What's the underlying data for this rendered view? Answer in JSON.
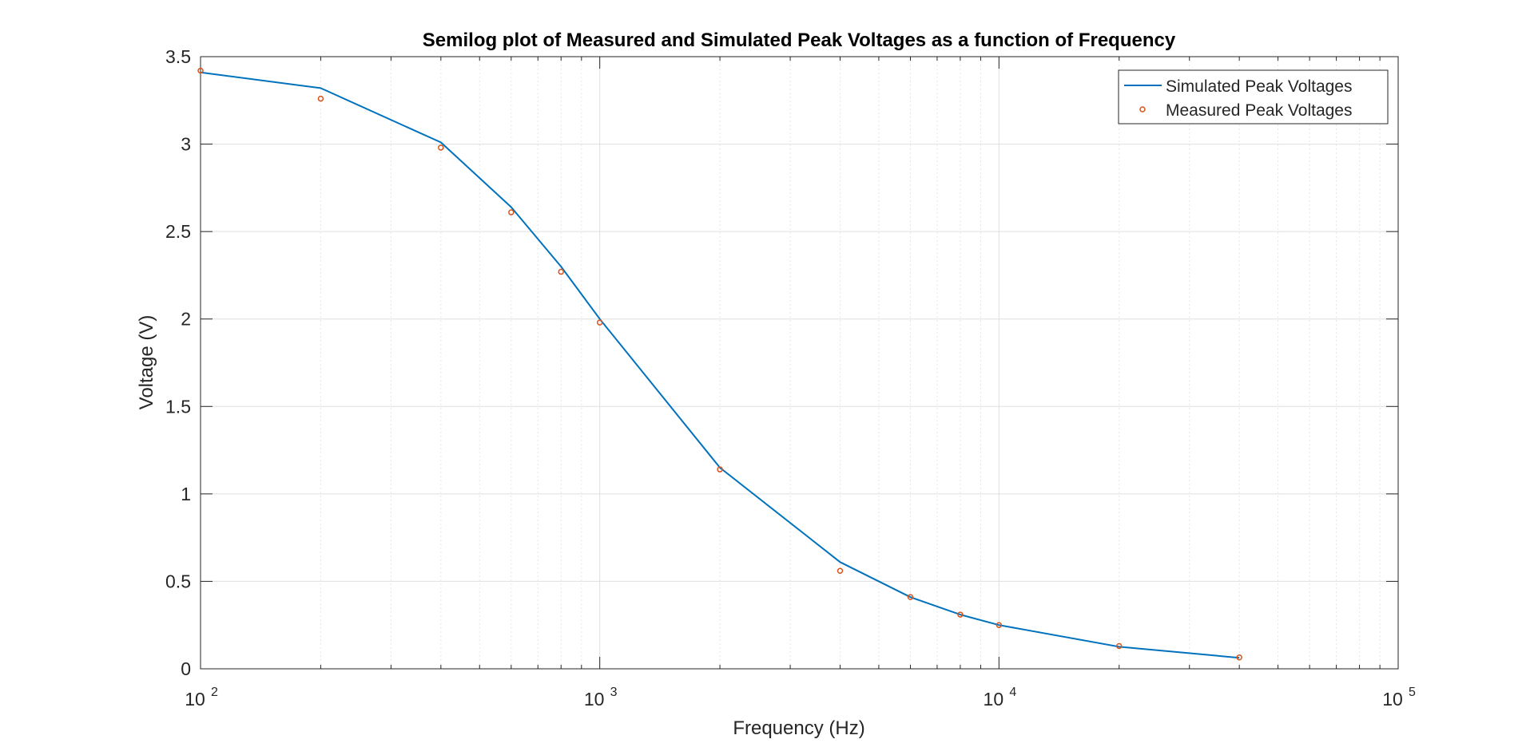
{
  "chart_data": {
    "type": "line",
    "title": "Semilog plot of Measured and Simulated Peak Voltages as a function of Frequency",
    "xlabel": "Frequency (Hz)",
    "ylabel": "Voltage (V)",
    "xscale": "log",
    "xlim": [
      100,
      100000
    ],
    "ylim": [
      0,
      3.5
    ],
    "grid": true,
    "legend": "top-right",
    "x_ticks": [
      {
        "base": "10",
        "exp": "2",
        "value": 100
      },
      {
        "base": "10",
        "exp": "3",
        "value": 1000
      },
      {
        "base": "10",
        "exp": "4",
        "value": 10000
      },
      {
        "base": "10",
        "exp": "5",
        "value": 100000
      }
    ],
    "y_ticks": [
      {
        "label": "0",
        "value": 0
      },
      {
        "label": "0.5",
        "value": 0.5
      },
      {
        "label": "1",
        "value": 1
      },
      {
        "label": "1.5",
        "value": 1.5
      },
      {
        "label": "2",
        "value": 2
      },
      {
        "label": "2.5",
        "value": 2.5
      },
      {
        "label": "3",
        "value": 3
      },
      {
        "label": "3.5",
        "value": 3.5
      }
    ],
    "series": [
      {
        "name": "Simulated Peak Voltages",
        "style": "line",
        "color": "#0072BD",
        "x": [
          100,
          200,
          400,
          600,
          800,
          1000,
          2000,
          4000,
          6000,
          8000,
          10000,
          20000,
          40000
        ],
        "y": [
          3.41,
          3.32,
          3.01,
          2.64,
          2.3,
          2.0,
          1.15,
          0.61,
          0.41,
          0.31,
          0.25,
          0.126,
          0.063
        ]
      },
      {
        "name": "Measured Peak Voltages",
        "style": "marker",
        "color": "#D95319",
        "x": [
          100,
          200,
          400,
          600,
          800,
          1000,
          2000,
          4000,
          6000,
          8000,
          10000,
          20000,
          40000
        ],
        "y": [
          3.42,
          3.26,
          2.98,
          2.61,
          2.27,
          1.98,
          1.14,
          0.56,
          0.41,
          0.31,
          0.25,
          0.13,
          0.065
        ]
      }
    ]
  }
}
